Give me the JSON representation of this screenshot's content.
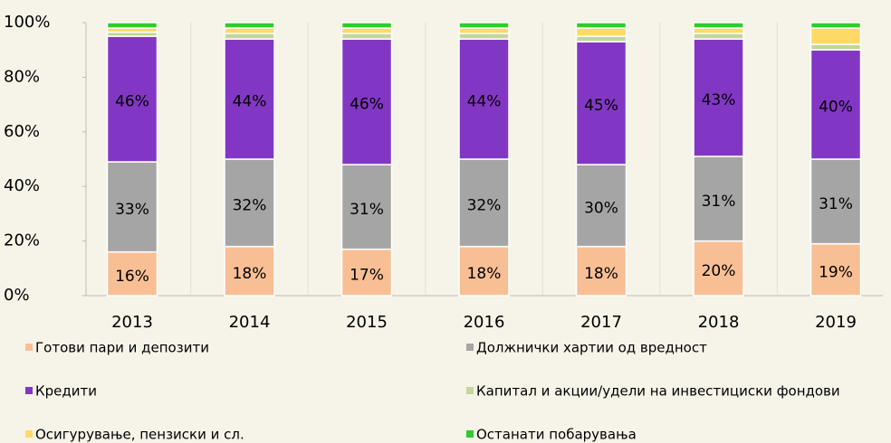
{
  "chart_data": {
    "type": "stacked_bar",
    "categories": [
      "2013",
      "2014",
      "2015",
      "2016",
      "2017",
      "2018",
      "2019"
    ],
    "ylim": [
      0,
      100
    ],
    "yticks": [
      {
        "value": 0,
        "label": "0%"
      },
      {
        "value": 20,
        "label": "20%"
      },
      {
        "value": 40,
        "label": "40%"
      },
      {
        "value": 60,
        "label": "60%"
      },
      {
        "value": 80,
        "label": "80%"
      },
      {
        "value": 100,
        "label": "100%"
      }
    ],
    "series": [
      {
        "name": "Готови пари и депозити",
        "color": "#f8bf95",
        "values": [
          16,
          18,
          17,
          18,
          18,
          20,
          19
        ],
        "value_labels": [
          "16%",
          "18%",
          "17%",
          "18%",
          "18%",
          "20%",
          "19%"
        ]
      },
      {
        "name": "Должнички хартии од вредност",
        "color": "#a5a5a5",
        "values": [
          33,
          32,
          31,
          32,
          30,
          31,
          31
        ],
        "value_labels": [
          "33%",
          "32%",
          "31%",
          "32%",
          "30%",
          "31%",
          "31%"
        ]
      },
      {
        "name": "Кредити",
        "color": "#8237c4",
        "values": [
          46,
          44,
          46,
          44,
          45,
          43,
          40
        ],
        "value_labels": [
          "46%",
          "44%",
          "46%",
          "44%",
          "45%",
          "43%",
          "40%"
        ]
      },
      {
        "name": "Капитал и акции/удели на инвестициски фондови",
        "color": "#c3d69b",
        "values": [
          1.5,
          2,
          2,
          2,
          2,
          2,
          2
        ]
      },
      {
        "name": "Осигурување, пензиски и сл.",
        "color": "#ffd966",
        "values": [
          1.5,
          2,
          2,
          2,
          3,
          2,
          6
        ]
      },
      {
        "name": "Останати побарувања",
        "color": "#2ecc2e",
        "values": [
          2,
          2,
          2,
          2,
          2,
          2,
          2
        ]
      }
    ]
  }
}
